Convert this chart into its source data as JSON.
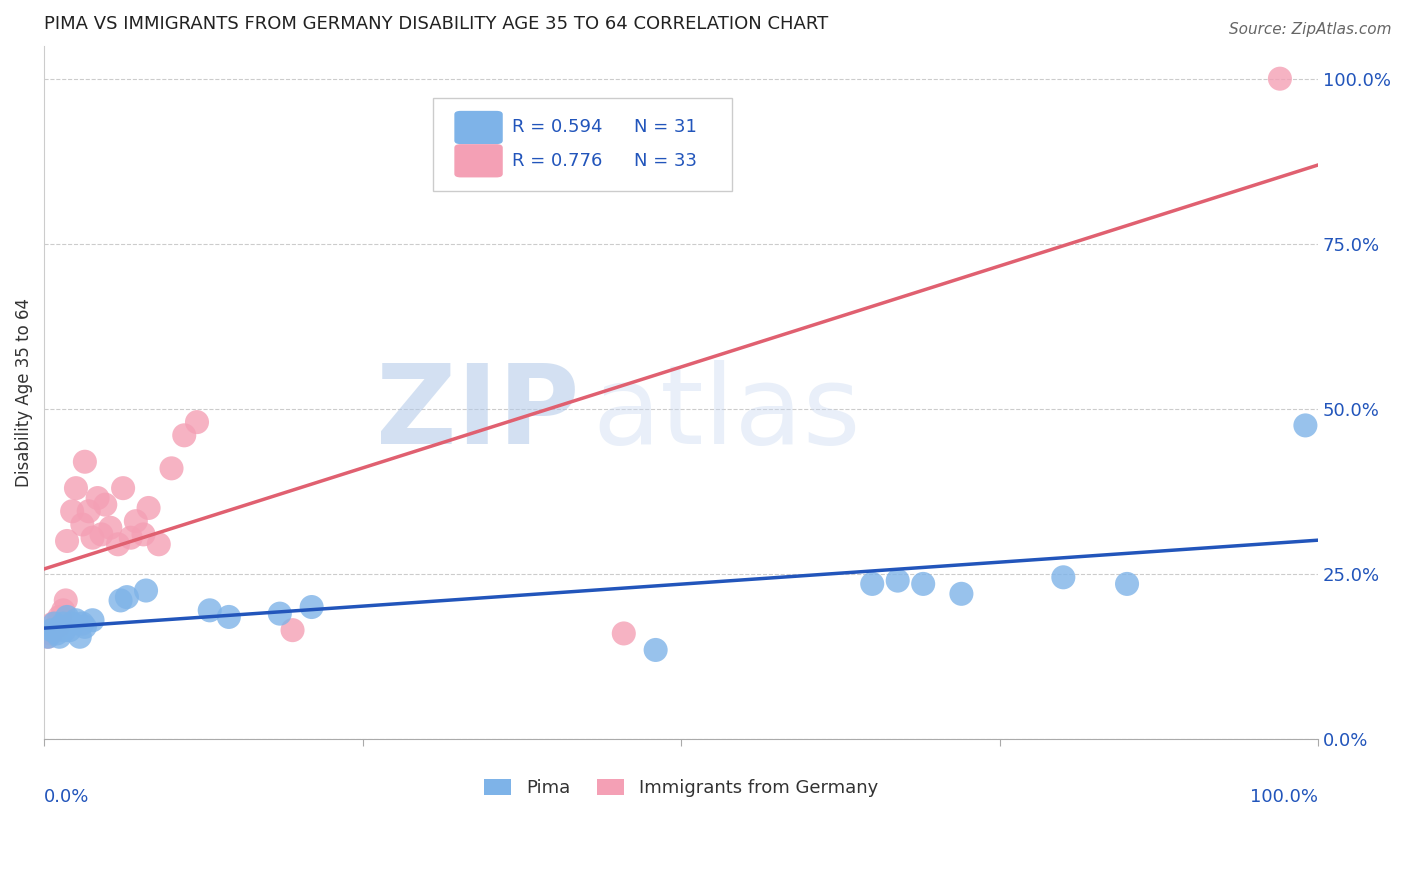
{
  "title": "PIMA VS IMMIGRANTS FROM GERMANY DISABILITY AGE 35 TO 64 CORRELATION CHART",
  "source": "Source: ZipAtlas.com",
  "ylabel": "Disability Age 35 to 64",
  "xlim": [
    0.0,
    1.0
  ],
  "ylim": [
    0.0,
    1.05
  ],
  "legend_r_pima": "R = 0.594",
  "legend_n_pima": "N = 31",
  "legend_r_germany": "R = 0.776",
  "legend_n_germany": "N = 33",
  "pima_color": "#7eb3e8",
  "germany_color": "#f4a0b5",
  "pima_line_color": "#2255bb",
  "germany_line_color": "#e06070",
  "watermark_zip": "ZIP",
  "watermark_atlas": "atlas",
  "background_color": "#ffffff",
  "grid_color": "#cccccc",
  "pima_points": [
    [
      0.003,
      0.155
    ],
    [
      0.006,
      0.165
    ],
    [
      0.008,
      0.175
    ],
    [
      0.01,
      0.16
    ],
    [
      0.012,
      0.155
    ],
    [
      0.013,
      0.17
    ],
    [
      0.015,
      0.175
    ],
    [
      0.016,
      0.165
    ],
    [
      0.018,
      0.185
    ],
    [
      0.02,
      0.165
    ],
    [
      0.022,
      0.175
    ],
    [
      0.025,
      0.18
    ],
    [
      0.028,
      0.155
    ],
    [
      0.03,
      0.175
    ],
    [
      0.032,
      0.17
    ],
    [
      0.038,
      0.18
    ],
    [
      0.06,
      0.21
    ],
    [
      0.065,
      0.215
    ],
    [
      0.08,
      0.225
    ],
    [
      0.13,
      0.195
    ],
    [
      0.145,
      0.185
    ],
    [
      0.185,
      0.19
    ],
    [
      0.21,
      0.2
    ],
    [
      0.48,
      0.135
    ],
    [
      0.65,
      0.235
    ],
    [
      0.67,
      0.24
    ],
    [
      0.69,
      0.235
    ],
    [
      0.72,
      0.22
    ],
    [
      0.8,
      0.245
    ],
    [
      0.85,
      0.235
    ],
    [
      0.99,
      0.475
    ]
  ],
  "germany_points": [
    [
      0.003,
      0.155
    ],
    [
      0.005,
      0.16
    ],
    [
      0.007,
      0.175
    ],
    [
      0.009,
      0.17
    ],
    [
      0.01,
      0.165
    ],
    [
      0.012,
      0.185
    ],
    [
      0.013,
      0.175
    ],
    [
      0.015,
      0.195
    ],
    [
      0.017,
      0.21
    ],
    [
      0.018,
      0.3
    ],
    [
      0.022,
      0.345
    ],
    [
      0.025,
      0.38
    ],
    [
      0.03,
      0.325
    ],
    [
      0.032,
      0.42
    ],
    [
      0.035,
      0.345
    ],
    [
      0.038,
      0.305
    ],
    [
      0.042,
      0.365
    ],
    [
      0.045,
      0.31
    ],
    [
      0.048,
      0.355
    ],
    [
      0.052,
      0.32
    ],
    [
      0.058,
      0.295
    ],
    [
      0.062,
      0.38
    ],
    [
      0.068,
      0.305
    ],
    [
      0.072,
      0.33
    ],
    [
      0.078,
      0.31
    ],
    [
      0.082,
      0.35
    ],
    [
      0.09,
      0.295
    ],
    [
      0.1,
      0.41
    ],
    [
      0.11,
      0.46
    ],
    [
      0.12,
      0.48
    ],
    [
      0.195,
      0.165
    ],
    [
      0.455,
      0.16
    ],
    [
      0.97,
      1.0
    ]
  ]
}
